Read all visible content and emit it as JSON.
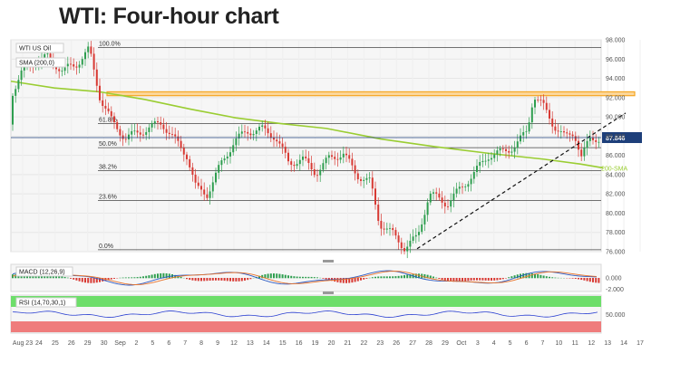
{
  "title": "WTI: Four-hour chart",
  "symbol_label": "WTI US Oil",
  "price_tag": "87.846",
  "chart_data": {
    "type": "candlestick",
    "y_range": [
      76.0,
      98.0
    ],
    "y_ticks": [
      "98.000",
      "96.000",
      "94.000",
      "92.000",
      "90.000",
      "88.000",
      "86.000",
      "84.000",
      "82.000",
      "80.000",
      "78.000",
      "76.000"
    ],
    "x_ticks": [
      "Aug 23",
      "24",
      "25",
      "26",
      "29",
      "30",
      "Sep",
      "2",
      "5",
      "6",
      "7",
      "8",
      "9",
      "12",
      "13",
      "14",
      "15",
      "16",
      "19",
      "20",
      "21",
      "22",
      "23",
      "26",
      "27",
      "28",
      "29",
      "Oct",
      "3",
      "4",
      "5",
      "6",
      "7",
      "10",
      "11",
      "12",
      "13",
      "14",
      "17"
    ],
    "indicators": {
      "sma": {
        "label": "SMA (200,0)",
        "annotation": "200-SMA",
        "color": "#9acd32"
      },
      "macd": {
        "label": "MACD (12,26,9)",
        "ticks": [
          "0.000",
          "-2.000"
        ]
      },
      "rsi": {
        "label": "RSI (14,70,30,1)",
        "ticks": [
          "50.000"
        ],
        "overbought": 70,
        "oversold": 30
      }
    },
    "fibonacci": [
      {
        "label": "100.0%",
        "price": 97.2
      },
      {
        "label": "61.8%",
        "price": 89.3
      },
      {
        "label": "50.0%",
        "price": 86.8
      },
      {
        "label": "38.2%",
        "price": 84.4
      },
      {
        "label": "23.6%",
        "price": 81.3
      },
      {
        "label": "0.0%",
        "price": 76.2
      }
    ],
    "resistance_zone": [
      92.2,
      92.6
    ],
    "current_price": 87.846,
    "trendline": {
      "from": {
        "date": "Sep 26",
        "price": 76.3
      },
      "to": {
        "date": "Oct 14",
        "price": 90.5
      }
    },
    "colors": {
      "up": "#2e9e4f",
      "down": "#d83a34",
      "sma": "#9acd32",
      "zone": "#f5a623",
      "price": "#1e3f7a"
    }
  }
}
